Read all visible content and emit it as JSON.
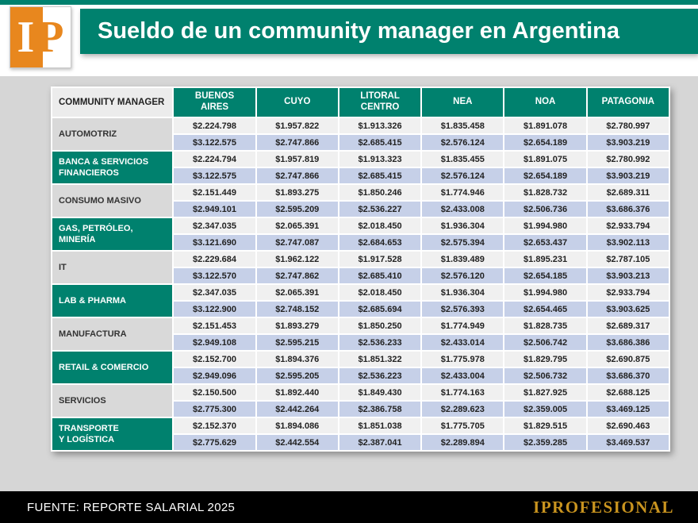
{
  "header": {
    "logo_i": "I",
    "logo_p": "P",
    "title": "Sueldo de un community manager en Argentina"
  },
  "chart_data": {
    "type": "table",
    "title": "Sueldo de un community manager en Argentina",
    "columns": [
      "COMMUNITY MANAGER",
      "BUENOS\nAIRES",
      "CUYO",
      "LITORAL\nCENTRO",
      "NEA",
      "NOA",
      "PATAGONIA"
    ],
    "rows": [
      {
        "category": "AUTOMOTRIZ",
        "highlight": false,
        "min": [
          "$2.224.798",
          "$1.957.822",
          "$1.913.326",
          "$1.835.458",
          "$1.891.078",
          "$2.780.997"
        ],
        "max": [
          "$3.122.575",
          "$2.747.866",
          "$2.685.415",
          "$2.576.124",
          "$2.654.189",
          "$3.903.219"
        ]
      },
      {
        "category": "BANCA & SERVICIOS\nFINANCIEROS",
        "highlight": true,
        "min": [
          "$2.224.794",
          "$1.957.819",
          "$1.913.323",
          "$1.835.455",
          "$1.891.075",
          "$2.780.992"
        ],
        "max": [
          "$3.122.575",
          "$2.747.866",
          "$2.685.415",
          "$2.576.124",
          "$2.654.189",
          "$3.903.219"
        ]
      },
      {
        "category": "CONSUMO MASIVO",
        "highlight": false,
        "min": [
          "$2.151.449",
          "$1.893.275",
          "$1.850.246",
          "$1.774.946",
          "$1.828.732",
          "$2.689.311"
        ],
        "max": [
          "$2.949.101",
          "$2.595.209",
          "$2.536.227",
          "$2.433.008",
          "$2.506.736",
          "$3.686.376"
        ]
      },
      {
        "category": "GAS, PETRÓLEO,\nMINERÍA",
        "highlight": true,
        "min": [
          "$2.347.035",
          "$2.065.391",
          "$2.018.450",
          "$1.936.304",
          "$1.994.980",
          "$2.933.794"
        ],
        "max": [
          "$3.121.690",
          "$2.747.087",
          "$2.684.653",
          "$2.575.394",
          "$2.653.437",
          "$3.902.113"
        ]
      },
      {
        "category": "IT",
        "highlight": false,
        "min": [
          "$2.229.684",
          "$1.962.122",
          "$1.917.528",
          "$1.839.489",
          "$1.895.231",
          "$2.787.105"
        ],
        "max": [
          "$3.122.570",
          "$2.747.862",
          "$2.685.410",
          "$2.576.120",
          "$2.654.185",
          "$3.903.213"
        ]
      },
      {
        "category": "LAB & PHARMA",
        "highlight": true,
        "min": [
          "$2.347.035",
          "$2.065.391",
          "$2.018.450",
          "$1.936.304",
          "$1.994.980",
          "$2.933.794"
        ],
        "max": [
          "$3.122.900",
          "$2.748.152",
          "$2.685.694",
          "$2.576.393",
          "$2.654.465",
          "$3.903.625"
        ]
      },
      {
        "category": "MANUFACTURA",
        "highlight": false,
        "min": [
          "$2.151.453",
          "$1.893.279",
          "$1.850.250",
          "$1.774.949",
          "$1.828.735",
          "$2.689.317"
        ],
        "max": [
          "$2.949.108",
          "$2.595.215",
          "$2.536.233",
          "$2.433.014",
          "$2.506.742",
          "$3.686.386"
        ]
      },
      {
        "category": "RETAIL & COMERCIO",
        "highlight": true,
        "min": [
          "$2.152.700",
          "$1.894.376",
          "$1.851.322",
          "$1.775.978",
          "$1.829.795",
          "$2.690.875"
        ],
        "max": [
          "$2.949.096",
          "$2.595.205",
          "$2.536.223",
          "$2.433.004",
          "$2.506.732",
          "$3.686.370"
        ]
      },
      {
        "category": "SERVICIOS",
        "highlight": false,
        "min": [
          "$2.150.500",
          "$1.892.440",
          "$1.849.430",
          "$1.774.163",
          "$1.827.925",
          "$2.688.125"
        ],
        "max": [
          "$2.775.300",
          "$2.442.264",
          "$2.386.758",
          "$2.289.623",
          "$2.359.005",
          "$3.469.125"
        ]
      },
      {
        "category": "TRANSPORTE\nY LOGÍSTICA",
        "highlight": true,
        "min": [
          "$2.152.370",
          "$1.894.086",
          "$1.851.038",
          "$1.775.705",
          "$1.829.515",
          "$2.690.463"
        ],
        "max": [
          "$2.775.629",
          "$2.442.554",
          "$2.387.041",
          "$2.289.894",
          "$2.359.285",
          "$3.469.537"
        ]
      }
    ]
  },
  "footer": {
    "source": "FUENTE: REPORTE SALARIAL 2025",
    "brand": "IPROFESIONAL"
  },
  "colors": {
    "teal": "#00816e",
    "orange": "#e8871e",
    "row_light": "#f0f0f0",
    "row_blue": "#c6d0e8",
    "category_gray": "#d9d9d9",
    "page_gray": "#d6d6d6",
    "footer_black": "#000000",
    "brand_gold": "#c9941f"
  }
}
